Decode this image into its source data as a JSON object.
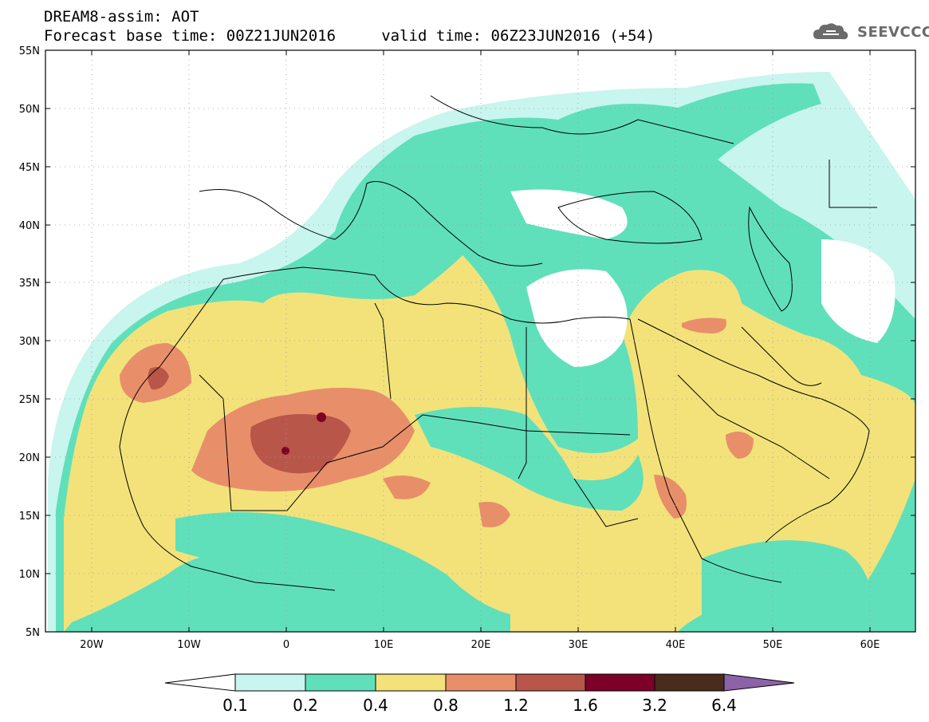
{
  "header": {
    "line1": "DREAM8-assim: AOT",
    "line2": "Forecast base time: 00Z21JUN2016     valid time: 06Z23JUN2016 (+54)",
    "logo_text": "SEEVCCC"
  },
  "axes": {
    "lat_labels": [
      "55N",
      "50N",
      "45N",
      "40N",
      "35N",
      "30N",
      "25N",
      "20N",
      "15N",
      "10N",
      "5N"
    ],
    "lon_labels": [
      "20W",
      "10W",
      "0",
      "10E",
      "20E",
      "30E",
      "40E",
      "50E",
      "60E"
    ]
  },
  "legend": {
    "thresholds": [
      "0.1",
      "0.2",
      "0.4",
      "0.8",
      "1.2",
      "1.6",
      "3.2",
      "6.4"
    ],
    "colors": [
      "#ffffff",
      "#c8f5ee",
      "#5fe0bb",
      "#f3e27a",
      "#e88f6a",
      "#b9564a",
      "#7d0028",
      "#4a2c1c",
      "#8c63a6"
    ]
  },
  "map_colors": {
    "land_base": "#ffffff",
    "c01": "#c8f5ee",
    "c02": "#5fe0bb",
    "c04": "#f3e27a",
    "c08": "#e88f6a",
    "c12": "#b9564a",
    "c16": "#7d0028",
    "border": "#000000"
  }
}
